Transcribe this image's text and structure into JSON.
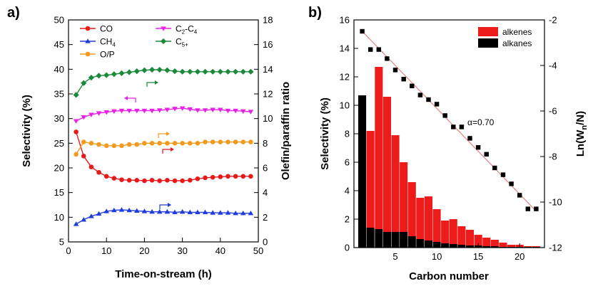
{
  "chart_data": [
    {
      "panel": "a)",
      "type": "line",
      "xlabel": "Time-on-stream (h)",
      "ylabel": "Selectivity (%)",
      "y2label": "Olefin/paraffin ratio",
      "xlim": [
        0,
        50
      ],
      "ylim": [
        5,
        50
      ],
      "y2lim": [
        0,
        18
      ],
      "xticks": [
        0,
        10,
        20,
        30,
        40,
        50
      ],
      "yticks": [
        5,
        10,
        15,
        20,
        25,
        30,
        35,
        40,
        45,
        50
      ],
      "y2ticks": [
        0,
        2,
        4,
        6,
        8,
        10,
        12,
        14,
        16,
        18
      ],
      "grid": false,
      "legend_position": "top",
      "x": [
        2,
        4,
        6,
        8,
        10,
        12,
        14,
        16,
        18,
        20,
        22,
        24,
        26,
        28,
        30,
        32,
        34,
        36,
        38,
        40,
        42,
        44,
        46,
        48
      ],
      "series": [
        {
          "name": "CO",
          "axis": "left",
          "marker": "circle",
          "color": "#e8191a",
          "values": [
            27.3,
            22.4,
            20.2,
            19.1,
            18.3,
            17.9,
            17.6,
            17.5,
            17.5,
            17.4,
            17.5,
            17.4,
            17.5,
            17.4,
            17.4,
            17.5,
            17.8,
            18.0,
            18.1,
            18.2,
            18.3,
            18.3,
            18.3,
            18.3
          ]
        },
        {
          "name": "CH4",
          "axis": "left",
          "marker": "triangle-up",
          "color": "#1f3ddc",
          "values": [
            8.6,
            9.5,
            10.2,
            10.7,
            11.2,
            11.4,
            11.5,
            11.4,
            11.3,
            11.2,
            11.1,
            11.1,
            11.1,
            11.0,
            11.1,
            11.0,
            11.0,
            11.0,
            10.9,
            10.9,
            10.9,
            10.8,
            10.8,
            10.8
          ]
        },
        {
          "name": "C2-C4",
          "axis": "left",
          "marker": "triangle-down",
          "color": "#e820e8",
          "values": [
            29.5,
            30.3,
            30.8,
            31.1,
            31.3,
            31.5,
            31.6,
            31.6,
            31.6,
            31.6,
            31.6,
            31.7,
            31.8,
            32.0,
            32.1,
            31.9,
            31.7,
            31.7,
            31.8,
            31.8,
            31.6,
            31.6,
            31.5,
            31.4
          ]
        },
        {
          "name": "C5+",
          "axis": "left",
          "marker": "diamond",
          "color": "#1a8a3a",
          "values": [
            34.8,
            37.2,
            38.3,
            38.7,
            38.8,
            39.0,
            39.2,
            39.4,
            39.6,
            39.8,
            39.9,
            39.9,
            39.8,
            39.6,
            39.5,
            39.5,
            39.5,
            39.5,
            39.5,
            39.5,
            39.5,
            39.5,
            39.5,
            39.5
          ]
        },
        {
          "name": "O/P",
          "axis": "right",
          "marker": "circle",
          "color": "#f39a1e",
          "values": [
            7.1,
            8.1,
            8.0,
            7.9,
            7.8,
            7.8,
            7.8,
            7.9,
            7.9,
            8.0,
            8.0,
            8.0,
            8.0,
            8.0,
            8.0,
            8.0,
            8.0,
            8.1,
            8.1,
            8.1,
            8.1,
            8.1,
            8.1,
            8.1
          ]
        }
      ],
      "legend_entries": [
        {
          "label": "CO",
          "color": "#e8191a",
          "marker": "circle"
        },
        {
          "label": "C",
          "sub": "2",
          "label2": "-C",
          "sub2": "4",
          "color": "#e820e8",
          "marker": "triangle-down"
        },
        {
          "label": "CH",
          "sub": "4",
          "color": "#1f3ddc",
          "marker": "triangle-up"
        },
        {
          "label": "C",
          "sub": "5+",
          "color": "#1a8a3a",
          "marker": "diamond"
        },
        {
          "label": "O/P",
          "color": "#f39a1e",
          "marker": "circle"
        }
      ],
      "axis_arrows": [
        {
          "color": "#1a8a3a",
          "direction": "right"
        },
        {
          "color": "#e820e8",
          "direction": "left"
        },
        {
          "color": "#f39a1e",
          "direction": "right"
        },
        {
          "color": "#e8191a",
          "direction": "right"
        },
        {
          "color": "#1f3ddc",
          "direction": "right"
        }
      ]
    },
    {
      "panel": "b)",
      "type": "bar",
      "xlabel": "Carbon number",
      "ylabel": "Selectivity (%)",
      "y2label_parts": [
        "Ln(W",
        "n",
        "/N)"
      ],
      "xlim": [
        0,
        23
      ],
      "ylim": [
        0,
        16
      ],
      "y2lim": [
        -12,
        -2
      ],
      "xticks": [
        5,
        10,
        15,
        20
      ],
      "yticks": [
        0,
        2,
        4,
        6,
        8,
        10,
        12,
        14,
        16
      ],
      "y2ticks": [
        -12,
        -10,
        -8,
        -6,
        -4,
        -2
      ],
      "grid": false,
      "legend_position": "top-right",
      "stacked": true,
      "categories": [
        1,
        2,
        3,
        4,
        5,
        6,
        7,
        8,
        9,
        10,
        11,
        12,
        13,
        14,
        15,
        16,
        17,
        18,
        19,
        20,
        21,
        22
      ],
      "series": [
        {
          "name": "alkanes",
          "color": "#000000",
          "values": [
            10.7,
            1.4,
            1.3,
            1.1,
            1.1,
            1.1,
            0.8,
            0.6,
            0.5,
            0.4,
            0.3,
            0.25,
            0.2,
            0.15,
            0.15,
            0.1,
            0.1,
            0.05,
            0.05,
            0.05,
            0.05,
            0.05
          ]
        },
        {
          "name": "alkenes",
          "color": "#ee1b1b",
          "values": [
            0.0,
            6.8,
            11.4,
            9.5,
            6.8,
            4.9,
            3.8,
            2.9,
            3.1,
            2.3,
            1.6,
            1.75,
            1.3,
            1.1,
            0.75,
            0.6,
            0.45,
            0.3,
            0.15,
            0.15,
            0.05,
            0.05
          ]
        }
      ],
      "asf": {
        "axis": "right",
        "x": [
          1,
          2,
          3,
          4,
          5,
          6,
          7,
          8,
          9,
          10,
          11,
          12,
          13,
          14,
          15,
          16,
          17,
          18,
          19,
          20,
          21,
          22
        ],
        "values": [
          -2.5,
          -3.3,
          -3.3,
          -3.7,
          -4.2,
          -4.6,
          -4.9,
          -5.3,
          -5.5,
          -5.7,
          -6.2,
          -6.7,
          -6.7,
          -7.2,
          -7.6,
          -7.9,
          -8.5,
          -8.8,
          -9.2,
          -9.7,
          -10.3,
          -10.3
        ],
        "fit": [
          [
            1,
            -2.5
          ],
          [
            22,
            -10.4
          ]
        ],
        "fit_color": "#e98080",
        "annotation": "α=0.70"
      }
    }
  ]
}
